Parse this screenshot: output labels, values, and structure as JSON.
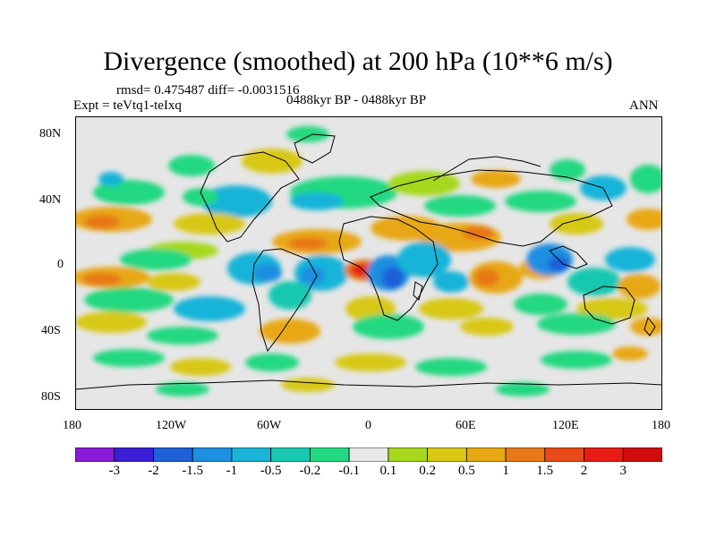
{
  "header": {
    "title": "Divergence (smoothed) at 200 hPa (10**6 m/s)",
    "stats": "rmsd= 0.475487 diff= -0.0031516",
    "experiment": "Expt = teVtq1-teIxq",
    "period": "0488kyr BP - 0488kyr BP",
    "season": "ANN"
  },
  "axes": {
    "lat_ticks": [
      "80N",
      "40N",
      "0",
      "40S",
      "80S"
    ],
    "lon_ticks": [
      "180",
      "120W",
      "60W",
      "0",
      "60E",
      "120E",
      "180"
    ]
  },
  "colorbar": {
    "labels": [
      "-3",
      "-2",
      "-1.5",
      "-1",
      "-0.5",
      "-0.2",
      "-0.1",
      "0.1",
      "0.2",
      "0.5",
      "1",
      "1.5",
      "2",
      "3"
    ],
    "colors": [
      "#8a1bd8",
      "#3b1fd6",
      "#1f5fd8",
      "#1f8fe0",
      "#19b4d8",
      "#18c8b0",
      "#22d880",
      "#e8e8e8",
      "#a6d81c",
      "#d8c814",
      "#e8a814",
      "#e87818",
      "#e84a18",
      "#e81c14",
      "#d00c0c"
    ]
  }
}
